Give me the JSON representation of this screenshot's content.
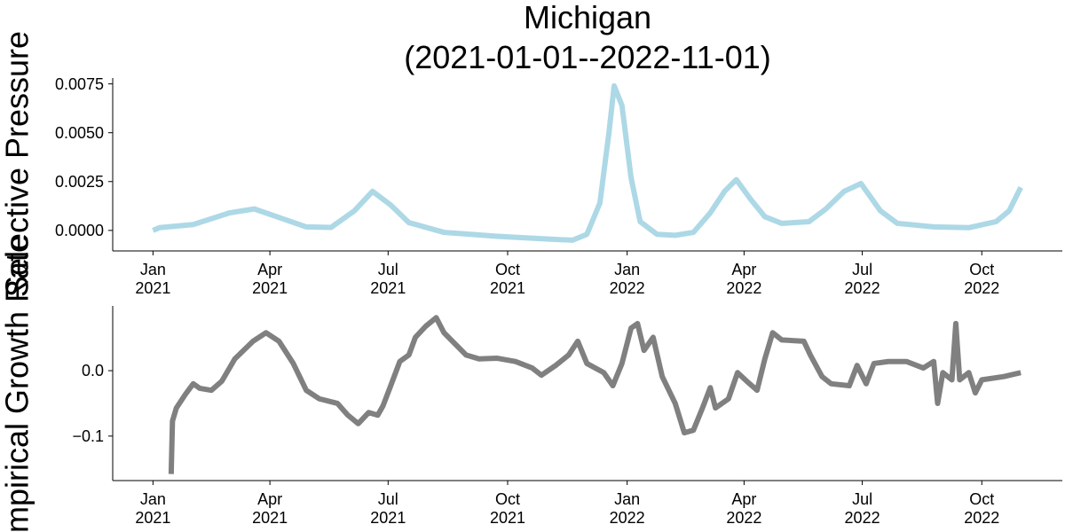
{
  "chart_data": [
    {
      "type": "line",
      "title": "Michigan\n(2021-01-01--2022-11-01)",
      "y_label": "Selective Pressure",
      "x": [
        "2021-01-01",
        "2021-01-06",
        "2021-02-01",
        "2021-03-01",
        "2021-03-20",
        "2021-04-15",
        "2021-04-29",
        "2021-05-18",
        "2021-06-05",
        "2021-06-19",
        "2021-07-03",
        "2021-07-17",
        "2021-08-13",
        "2021-09-23",
        "2021-11-03",
        "2021-11-20",
        "2021-12-01",
        "2021-12-11",
        "2021-12-18",
        "2021-12-22",
        "2021-12-28",
        "2022-01-04",
        "2022-01-11",
        "2022-01-24",
        "2022-02-07",
        "2022-02-21",
        "2022-03-06",
        "2022-03-17",
        "2022-03-26",
        "2022-04-06",
        "2022-04-17",
        "2022-04-30",
        "2022-05-21",
        "2022-06-03",
        "2022-06-17",
        "2022-06-30",
        "2022-07-15",
        "2022-07-28",
        "2022-08-25",
        "2022-09-21",
        "2022-10-12",
        "2022-10-22",
        "2022-10-31"
      ],
      "series": [
        {
          "color": "#add8e6",
          "values": [
            0.0,
            0.00014,
            0.0003,
            0.0009,
            0.0011,
            0.0005,
            0.00018,
            0.00015,
            0.001,
            0.002,
            0.0013,
            0.0004,
            -0.0001,
            -0.0003,
            -0.00045,
            -0.0005,
            -0.0002,
            0.0014,
            0.005,
            0.0074,
            0.0064,
            0.0027,
            0.00045,
            -0.0002,
            -0.00025,
            -0.0001,
            0.0009,
            0.002,
            0.0026,
            0.0016,
            0.0007,
            0.00036,
            0.00045,
            0.0011,
            0.002,
            0.0024,
            0.001,
            0.00036,
            0.00018,
            0.00014,
            0.00045,
            0.001,
            0.0022
          ]
        }
      ],
      "xlim": [
        "2020-12-01",
        "2022-12-02"
      ],
      "xticks": [
        {
          "value": "2021-01-01",
          "label": "Jan\n2021"
        },
        {
          "value": "2021-04-01",
          "label": "Apr\n2021"
        },
        {
          "value": "2021-07-01",
          "label": "Jul\n2021"
        },
        {
          "value": "2021-10-01",
          "label": "Oct\n2021"
        },
        {
          "value": "2022-01-01",
          "label": "Jan\n2022"
        },
        {
          "value": "2022-04-01",
          "label": "Apr\n2022"
        },
        {
          "value": "2022-07-01",
          "label": "Jul\n2022"
        },
        {
          "value": "2022-10-01",
          "label": "Oct\n2022"
        }
      ],
      "ylim": [
        -0.00105,
        0.0078
      ],
      "yticks": [
        {
          "value": 0,
          "label": "0.0000"
        },
        {
          "value": 0.0025,
          "label": "0.0025"
        },
        {
          "value": 0.005,
          "label": "0.0050"
        },
        {
          "value": 0.0075,
          "label": "0.0075"
        }
      ],
      "grid": false
    },
    {
      "type": "line",
      "y_label": "Empirical Growth Rate",
      "x": [
        "2021-01-15",
        "2021-01-16",
        "2021-01-19",
        "2021-01-26",
        "2021-02-01",
        "2021-02-06",
        "2021-02-15",
        "2021-02-23",
        "2021-03-05",
        "2021-03-19",
        "2021-03-29",
        "2021-04-08",
        "2021-04-19",
        "2021-04-29",
        "2021-05-09",
        "2021-05-23",
        "2021-05-31",
        "2021-06-08",
        "2021-06-16",
        "2021-06-23",
        "2021-06-27",
        "2021-07-03",
        "2021-07-10",
        "2021-07-17",
        "2021-07-22",
        "2021-07-30",
        "2021-08-07",
        "2021-08-13",
        "2021-08-23",
        "2021-08-30",
        "2021-09-09",
        "2021-09-23",
        "2021-10-07",
        "2021-10-20",
        "2021-10-27",
        "2021-11-07",
        "2021-11-17",
        "2021-11-24",
        "2021-12-01",
        "2021-12-14",
        "2021-12-21",
        "2021-12-28",
        "2022-01-04",
        "2022-01-09",
        "2022-01-14",
        "2022-01-21",
        "2022-01-28",
        "2022-02-07",
        "2022-02-14",
        "2022-02-21",
        "2022-02-28",
        "2022-03-06",
        "2022-03-10",
        "2022-03-20",
        "2022-03-27",
        "2022-04-03",
        "2022-04-11",
        "2022-04-17",
        "2022-04-23",
        "2022-04-30",
        "2022-05-17",
        "2022-05-22",
        "2022-05-31",
        "2022-06-07",
        "2022-06-21",
        "2022-06-27",
        "2022-07-04",
        "2022-07-10",
        "2022-07-21",
        "2022-08-04",
        "2022-08-17",
        "2022-08-25",
        "2022-08-28",
        "2022-09-01",
        "2022-09-08",
        "2022-09-11",
        "2022-09-14",
        "2022-09-21",
        "2022-09-26",
        "2022-10-01",
        "2022-10-18",
        "2022-10-31"
      ],
      "series": [
        {
          "color": "#808080",
          "values": [
            -0.158,
            -0.077,
            -0.057,
            -0.036,
            -0.02,
            -0.027,
            -0.03,
            -0.016,
            0.018,
            0.045,
            0.058,
            0.045,
            0.011,
            -0.03,
            -0.043,
            -0.05,
            -0.068,
            -0.081,
            -0.064,
            -0.068,
            -0.054,
            -0.023,
            0.014,
            0.024,
            0.051,
            0.068,
            0.081,
            0.058,
            0.038,
            0.024,
            0.018,
            0.019,
            0.014,
            0.004,
            -0.007,
            0.008,
            0.024,
            0.045,
            0.011,
            -0.003,
            -0.023,
            0.011,
            0.065,
            0.072,
            0.031,
            0.051,
            -0.009,
            -0.05,
            -0.095,
            -0.091,
            -0.057,
            -0.026,
            -0.057,
            -0.043,
            -0.003,
            -0.016,
            -0.03,
            0.018,
            0.058,
            0.047,
            0.045,
            0.024,
            -0.009,
            -0.02,
            -0.023,
            0.008,
            -0.02,
            0.011,
            0.014,
            0.014,
            0.004,
            0.014,
            -0.05,
            -0.003,
            -0.014,
            0.072,
            -0.014,
            -0.003,
            -0.034,
            -0.014,
            -0.009,
            -0.003
          ]
        }
      ],
      "xlim": [
        "2020-12-01",
        "2022-12-02"
      ],
      "xticks": [
        {
          "value": "2021-01-01",
          "label": "Jan\n2021"
        },
        {
          "value": "2021-04-01",
          "label": "Apr\n2021"
        },
        {
          "value": "2021-07-01",
          "label": "Jul\n2021"
        },
        {
          "value": "2021-10-01",
          "label": "Oct\n2021"
        },
        {
          "value": "2022-01-01",
          "label": "Jan\n2022"
        },
        {
          "value": "2022-04-01",
          "label": "Apr\n2022"
        },
        {
          "value": "2022-07-01",
          "label": "Jul\n2022"
        },
        {
          "value": "2022-10-01",
          "label": "Oct\n2022"
        }
      ],
      "ylim": [
        -0.168,
        0.099
      ],
      "yticks": [
        {
          "value": -0.1,
          "label": "−0.1"
        },
        {
          "value": 0,
          "label": "0.0"
        }
      ],
      "grid": false
    }
  ]
}
